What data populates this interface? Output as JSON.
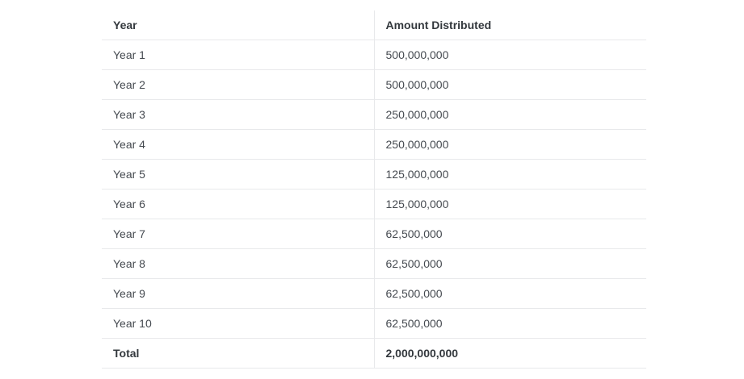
{
  "table": {
    "headers": [
      "Year",
      "Amount Distributed"
    ],
    "rows": [
      [
        "Year 1",
        "500,000,000"
      ],
      [
        "Year 2",
        "500,000,000"
      ],
      [
        "Year 3",
        "250,000,000"
      ],
      [
        "Year 4",
        "250,000,000"
      ],
      [
        "Year 5",
        "125,000,000"
      ],
      [
        "Year 6",
        "125,000,000"
      ],
      [
        "Year 7",
        "62,500,000"
      ],
      [
        "Year 8",
        "62,500,000"
      ],
      [
        "Year 9",
        "62,500,000"
      ],
      [
        "Year 10",
        "62,500,000"
      ]
    ],
    "total": [
      "Total",
      "2,000,000,000"
    ]
  }
}
